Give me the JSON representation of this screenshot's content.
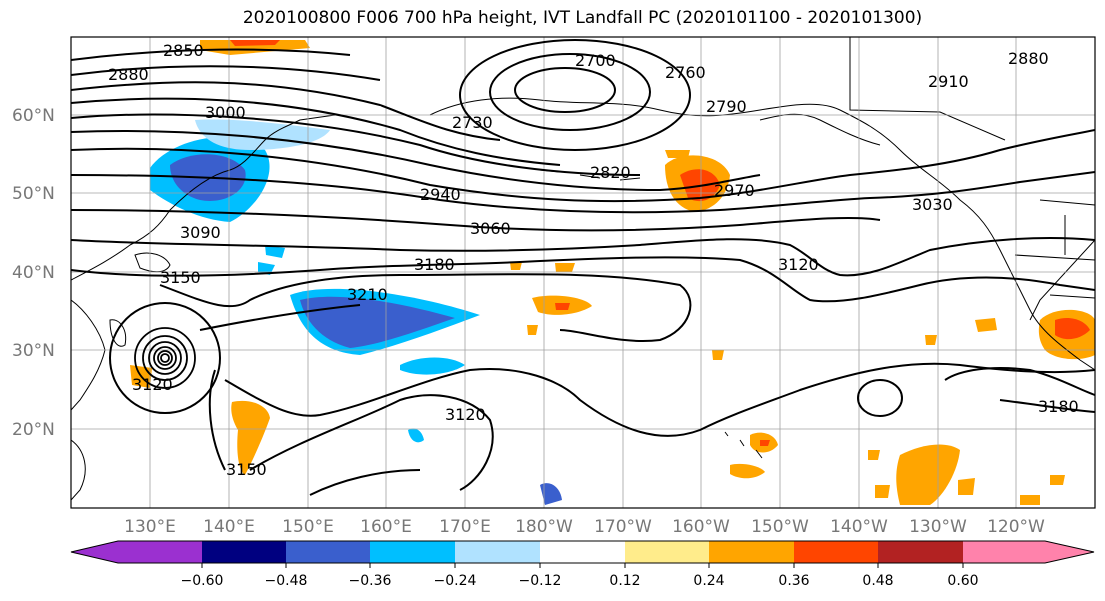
{
  "title": "2020100800 F006 700 hPa height, IVT Landfall PC (2020101100 - 2020101300)",
  "lat_labels": [
    "60°N",
    "50°N",
    "40°N",
    "30°N",
    "20°N"
  ],
  "lon_labels": [
    "130°E",
    "140°E",
    "150°E",
    "160°E",
    "170°E",
    "180°W",
    "170°W",
    "160°W",
    "150°W",
    "140°W",
    "130°W",
    "120°W"
  ],
  "contour_labels": [
    "2850",
    "2880",
    "3000",
    "2700",
    "2760",
    "2730",
    "2790",
    "2820",
    "2910",
    "2880",
    "2940",
    "2970",
    "3030",
    "3090",
    "3060",
    "3180",
    "3150",
    "3120",
    "3210",
    "3120",
    "3120",
    "3150",
    "3180"
  ],
  "colorbar": {
    "ticks": [
      "−0.60",
      "−0.48",
      "−0.36",
      "−0.24",
      "−0.12",
      "0.12",
      "0.24",
      "0.36",
      "0.48",
      "0.60"
    ],
    "colors": [
      "#9b30d0",
      "#000080",
      "#3a5fcd",
      "#00bfff",
      "#b0e2ff",
      "#ffffff",
      "#ffec8b",
      "#ffa500",
      "#ff4500",
      "#b22222",
      "#ff82ab"
    ]
  }
}
